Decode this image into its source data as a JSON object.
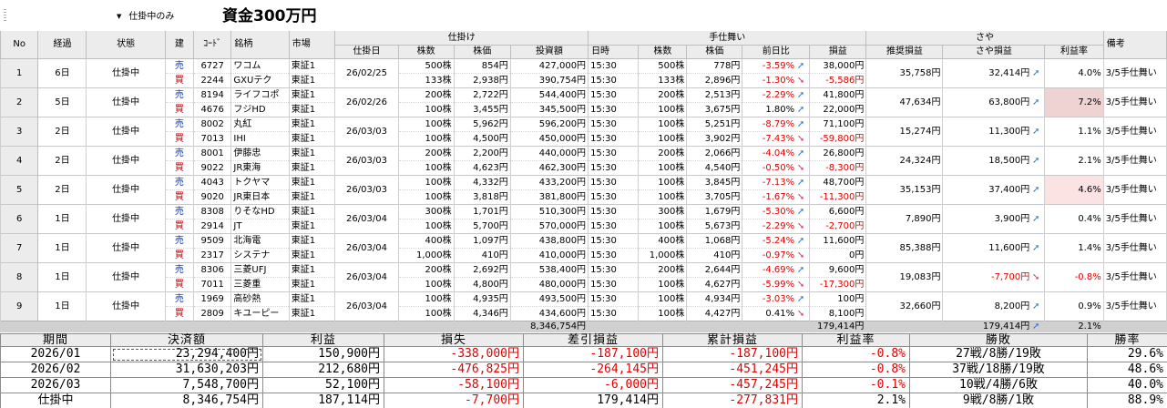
{
  "toolbar": {
    "filter_label": "仕掛中のみ",
    "capital_label": "資金300万円"
  },
  "grid": {
    "groups": {
      "entry": "仕掛け",
      "exit": "手仕舞い",
      "saya": "さや"
    },
    "headers": {
      "no": "No",
      "elapsed": "経過",
      "status": "状態",
      "side": "建",
      "code": "ｺｰﾄﾞ",
      "name": "銘柄",
      "market": "市場",
      "entry_date": "仕掛日",
      "entry_qty": "株数",
      "entry_price": "株価",
      "entry_amount": "投資額",
      "exit_time": "日時",
      "exit_qty": "株数",
      "exit_price": "株価",
      "exit_change": "前日比",
      "pnl": "損益",
      "rec_pnl": "推奨損益",
      "saya_pnl": "さや損益",
      "rate": "利益率",
      "note": "備考"
    },
    "rows": [
      {
        "no": "1",
        "elapsed": "6日",
        "status": "仕掛中",
        "date": "26/02/25",
        "rec": "35,758円",
        "saya": "32,414円",
        "saya_dir": "up",
        "rate": "4.0%",
        "note": "3/5手仕舞い",
        "highlight": "",
        "legs": [
          {
            "side": "売",
            "code": "6727",
            "name": "ワコム",
            "market": "東証1",
            "qty": "500株",
            "price": "854円",
            "amount": "427,000円",
            "time": "15:30",
            "xqty": "500株",
            "xprice": "778円",
            "chg": "-3.59%",
            "dir": "up",
            "pnl": "38,000円"
          },
          {
            "side": "買",
            "code": "2244",
            "name": "GXUテク",
            "market": "東証1",
            "qty": "133株",
            "price": "2,938円",
            "amount": "390,754円",
            "time": "15:30",
            "xqty": "133株",
            "xprice": "2,896円",
            "chg": "-1.30%",
            "dir": "dn",
            "pnl": "-5,586円"
          }
        ]
      },
      {
        "no": "2",
        "elapsed": "5日",
        "status": "仕掛中",
        "date": "26/02/26",
        "rec": "47,634円",
        "saya": "63,800円",
        "saya_dir": "up",
        "rate": "7.2%",
        "note": "3/5手仕舞い",
        "highlight": "#efd3d3",
        "legs": [
          {
            "side": "売",
            "code": "8194",
            "name": "ライフコポ",
            "market": "東証1",
            "qty": "200株",
            "price": "2,722円",
            "amount": "544,400円",
            "time": "15:30",
            "xqty": "200株",
            "xprice": "2,513円",
            "chg": "-2.29%",
            "dir": "up",
            "pnl": "41,800円"
          },
          {
            "side": "買",
            "code": "4676",
            "name": "フジHD",
            "market": "東証1",
            "qty": "100株",
            "price": "3,455円",
            "amount": "345,500円",
            "time": "15:30",
            "xqty": "100株",
            "xprice": "3,675円",
            "chg": "1.80%",
            "dir": "up",
            "pnl": "22,000円"
          }
        ]
      },
      {
        "no": "3",
        "elapsed": "2日",
        "status": "仕掛中",
        "date": "26/03/03",
        "rec": "15,274円",
        "saya": "11,300円",
        "saya_dir": "up",
        "rate": "1.1%",
        "note": "3/5手仕舞い",
        "highlight": "",
        "legs": [
          {
            "side": "売",
            "code": "8002",
            "name": "丸紅",
            "market": "東証1",
            "qty": "100株",
            "price": "5,962円",
            "amount": "596,200円",
            "time": "15:30",
            "xqty": "100株",
            "xprice": "5,251円",
            "chg": "-8.79%",
            "dir": "up",
            "pnl": "71,100円"
          },
          {
            "side": "買",
            "code": "7013",
            "name": "IHI",
            "market": "東証1",
            "qty": "100株",
            "price": "4,500円",
            "amount": "450,000円",
            "time": "15:30",
            "xqty": "100株",
            "xprice": "3,902円",
            "chg": "-7.43%",
            "dir": "dn",
            "pnl": "-59,800円"
          }
        ]
      },
      {
        "no": "4",
        "elapsed": "2日",
        "status": "仕掛中",
        "date": "26/03/03",
        "rec": "24,324円",
        "saya": "18,500円",
        "saya_dir": "up",
        "rate": "2.1%",
        "note": "3/5手仕舞い",
        "highlight": "",
        "legs": [
          {
            "side": "売",
            "code": "8001",
            "name": "伊藤忠",
            "market": "東証1",
            "qty": "200株",
            "price": "2,200円",
            "amount": "440,000円",
            "time": "15:30",
            "xqty": "200株",
            "xprice": "2,066円",
            "chg": "-4.04%",
            "dir": "up",
            "pnl": "26,800円"
          },
          {
            "side": "買",
            "code": "9022",
            "name": "JR東海",
            "market": "東証1",
            "qty": "100株",
            "price": "4,623円",
            "amount": "462,300円",
            "time": "15:30",
            "xqty": "100株",
            "xprice": "4,540円",
            "chg": "-0.50%",
            "dir": "dn",
            "pnl": "-8,300円"
          }
        ]
      },
      {
        "no": "5",
        "elapsed": "2日",
        "status": "仕掛中",
        "date": "26/03/03",
        "rec": "35,153円",
        "saya": "37,400円",
        "saya_dir": "up",
        "rate": "4.6%",
        "note": "3/5手仕舞い",
        "highlight": "#fbe3e3",
        "legs": [
          {
            "side": "売",
            "code": "4043",
            "name": "トクヤマ",
            "market": "東証1",
            "qty": "100株",
            "price": "4,332円",
            "amount": "433,200円",
            "time": "15:30",
            "xqty": "100株",
            "xprice": "3,845円",
            "chg": "-7.13%",
            "dir": "up",
            "pnl": "48,700円"
          },
          {
            "side": "買",
            "code": "9020",
            "name": "JR東日本",
            "market": "東証1",
            "qty": "100株",
            "price": "3,818円",
            "amount": "381,800円",
            "time": "15:30",
            "xqty": "100株",
            "xprice": "3,705円",
            "chg": "-1.67%",
            "dir": "dn",
            "pnl": "-11,300円"
          }
        ]
      },
      {
        "no": "6",
        "elapsed": "1日",
        "status": "仕掛中",
        "date": "26/03/04",
        "rec": "7,890円",
        "saya": "3,900円",
        "saya_dir": "up",
        "rate": "0.4%",
        "note": "3/5手仕舞い",
        "highlight": "",
        "legs": [
          {
            "side": "売",
            "code": "8308",
            "name": "りそなHD",
            "market": "東証1",
            "qty": "300株",
            "price": "1,701円",
            "amount": "510,300円",
            "time": "15:30",
            "xqty": "300株",
            "xprice": "1,679円",
            "chg": "-5.30%",
            "dir": "up",
            "pnl": "6,600円"
          },
          {
            "side": "買",
            "code": "2914",
            "name": "JT",
            "market": "東証1",
            "qty": "100株",
            "price": "5,700円",
            "amount": "570,000円",
            "time": "15:30",
            "xqty": "100株",
            "xprice": "5,673円",
            "chg": "-2.29%",
            "dir": "dn",
            "pnl": "-2,700円"
          }
        ]
      },
      {
        "no": "7",
        "elapsed": "1日",
        "status": "仕掛中",
        "date": "26/03/04",
        "rec": "85,388円",
        "saya": "11,600円",
        "saya_dir": "up",
        "rate": "1.4%",
        "note": "3/5手仕舞い",
        "highlight": "",
        "legs": [
          {
            "side": "売",
            "code": "9509",
            "name": "北海電",
            "market": "東証1",
            "qty": "400株",
            "price": "1,097円",
            "amount": "438,800円",
            "time": "15:30",
            "xqty": "400株",
            "xprice": "1,068円",
            "chg": "-5.24%",
            "dir": "up",
            "pnl": "11,600円"
          },
          {
            "side": "買",
            "code": "2317",
            "name": "システナ",
            "market": "東証1",
            "qty": "1,000株",
            "price": "410円",
            "amount": "410,000円",
            "time": "15:30",
            "xqty": "1,000株",
            "xprice": "410円",
            "chg": "-0.97%",
            "dir": "dn",
            "pnl": "0円"
          }
        ]
      },
      {
        "no": "8",
        "elapsed": "1日",
        "status": "仕掛中",
        "date": "26/03/04",
        "rec": "19,083円",
        "saya": "-7,700円",
        "saya_dir": "dn",
        "rate": "-0.8%",
        "note": "3/5手仕舞い",
        "highlight": "",
        "legs": [
          {
            "side": "売",
            "code": "8306",
            "name": "三菱UFJ",
            "market": "東証1",
            "qty": "200株",
            "price": "2,692円",
            "amount": "538,400円",
            "time": "15:30",
            "xqty": "200株",
            "xprice": "2,644円",
            "chg": "-4.69%",
            "dir": "up",
            "pnl": "9,600円"
          },
          {
            "side": "買",
            "code": "7011",
            "name": "三菱重",
            "market": "東証1",
            "qty": "100株",
            "price": "4,800円",
            "amount": "480,000円",
            "time": "15:30",
            "xqty": "100株",
            "xprice": "4,627円",
            "chg": "-5.99%",
            "dir": "dn",
            "pnl": "-17,300円"
          }
        ]
      },
      {
        "no": "9",
        "elapsed": "1日",
        "status": "仕掛中",
        "date": "26/03/04",
        "rec": "32,660円",
        "saya": "8,200円",
        "saya_dir": "up",
        "rate": "0.9%",
        "note": "3/5手仕舞い",
        "highlight": "",
        "legs": [
          {
            "side": "売",
            "code": "1969",
            "name": "高砂熱",
            "market": "東証1",
            "qty": "100株",
            "price": "4,935円",
            "amount": "493,500円",
            "time": "15:30",
            "xqty": "100株",
            "xprice": "4,934円",
            "chg": "-3.03%",
            "dir": "up",
            "pnl": "100円"
          },
          {
            "side": "買",
            "code": "2809",
            "name": "キユーピー",
            "market": "東証1",
            "qty": "100株",
            "price": "4,346円",
            "amount": "434,600円",
            "time": "15:30",
            "xqty": "100株",
            "xprice": "4,427円",
            "chg": "0.41%",
            "dir": "dn",
            "pnl": "8,100円"
          }
        ]
      }
    ],
    "totals": {
      "amount": "8,346,754円",
      "pnl": "179,414円",
      "saya": "179,414円",
      "saya_dir": "up",
      "rate": "2.1%"
    }
  },
  "summary": {
    "headers": [
      "期間",
      "決済額",
      "利益",
      "損失",
      "差引損益",
      "累計損益",
      "利益率",
      "勝敗",
      "勝率"
    ],
    "rows": [
      {
        "period": "2026/01",
        "settle": "23,294,400円",
        "profit": "150,900円",
        "loss": "-338,000円",
        "net": "-187,100円",
        "cum": "-187,100円",
        "rate": "-0.8%",
        "record": "27戦/8勝/19敗",
        "winrate": "29.6%",
        "dashed": true
      },
      {
        "period": "2026/02",
        "settle": "31,630,203円",
        "profit": "212,680円",
        "loss": "-476,825円",
        "net": "-264,145円",
        "cum": "-451,245円",
        "rate": "-0.8%",
        "record": "37戦/18勝/19敗",
        "winrate": "48.6%",
        "dashed": false
      },
      {
        "period": "2026/03",
        "settle": "7,548,700円",
        "profit": "52,100円",
        "loss": "-58,100円",
        "net": "-6,000円",
        "cum": "-457,245円",
        "rate": "-0.1%",
        "record": "10戦/4勝/6敗",
        "winrate": "40.0%",
        "dashed": false
      },
      {
        "period": "仕掛中",
        "settle": "8,346,754円",
        "profit": "187,114円",
        "loss": "-7,700円",
        "net": "179,414円",
        "cum": "-277,831円",
        "rate": "2.1%",
        "record": "9戦/8勝/1敗",
        "winrate": "88.9%",
        "dashed": false
      }
    ]
  }
}
